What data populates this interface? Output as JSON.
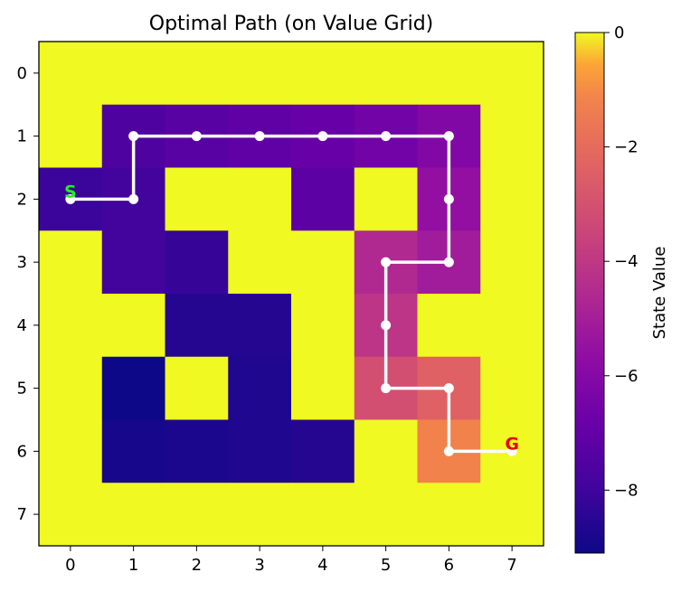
{
  "chart_data": {
    "type": "heatmap",
    "title": "Optimal Path (on Value Grid)",
    "x_ticks": [
      "0",
      "1",
      "2",
      "3",
      "4",
      "5",
      "6",
      "7"
    ],
    "y_ticks": [
      "0",
      "1",
      "2",
      "3",
      "4",
      "5",
      "6",
      "7"
    ],
    "colormap": "plasma",
    "vmin": -9.1,
    "vmax": 0,
    "colorbar": {
      "label": "State Value",
      "ticks": [
        0,
        -2,
        -4,
        -6,
        -8
      ],
      "tick_labels": [
        "0",
        "−2",
        "−4",
        "−6",
        "−8"
      ]
    },
    "values": [
      [
        0,
        0,
        0,
        0,
        0,
        0,
        0,
        0
      ],
      [
        0,
        -7.6,
        -7.3,
        -7.1,
        -6.9,
        -6.6,
        -6.1,
        0
      ],
      [
        -8.1,
        -7.9,
        0,
        0,
        -7.2,
        0,
        -5.6,
        0
      ],
      [
        0,
        -7.9,
        -8.2,
        0,
        0,
        -4.6,
        -5.1,
        0
      ],
      [
        0,
        0,
        -8.6,
        -8.6,
        0,
        -4.1,
        0,
        0
      ],
      [
        0,
        -9.1,
        0,
        -8.7,
        0,
        -3.1,
        -2.4,
        0
      ],
      [
        0,
        -8.9,
        -8.8,
        -8.7,
        -8.6,
        0,
        -1.2,
        0
      ],
      [
        0,
        0,
        0,
        0,
        0,
        0,
        0,
        0
      ]
    ],
    "path": [
      [
        0,
        2
      ],
      [
        1,
        2
      ],
      [
        1,
        1
      ],
      [
        2,
        1
      ],
      [
        3,
        1
      ],
      [
        4,
        1
      ],
      [
        5,
        1
      ],
      [
        6,
        1
      ],
      [
        6,
        2
      ],
      [
        6,
        3
      ],
      [
        5,
        3
      ],
      [
        5,
        4
      ],
      [
        5,
        5
      ],
      [
        6,
        5
      ],
      [
        6,
        6
      ],
      [
        7,
        6
      ]
    ],
    "path_color": "#ffffff",
    "start": {
      "label": "S",
      "x": 0,
      "y": 2,
      "color": "#22ee22"
    },
    "goal": {
      "label": "G",
      "x": 7,
      "y": 6,
      "color": "#ee0000"
    }
  }
}
